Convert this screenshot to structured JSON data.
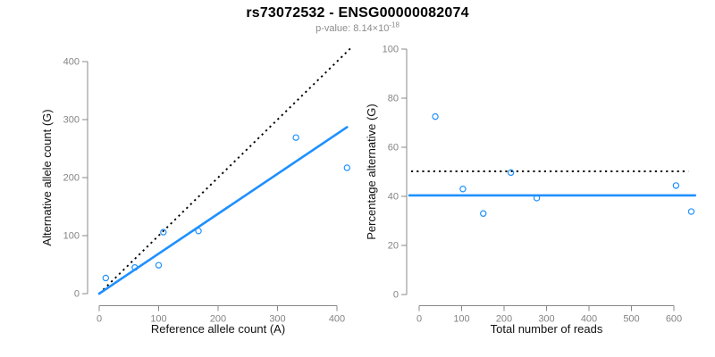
{
  "header": {
    "title": "rs73072532 - ENSG00000082074",
    "subtitle_prefix": "p-value: 8.14×10",
    "subtitle_exponent": "-18"
  },
  "colors": {
    "point_blue": "#1e90ff",
    "line_blue": "#1e90ff",
    "dashed_black": "#000000",
    "axis_gray": "#888888",
    "tick_label_gray": "#848484",
    "axis_title_color": "#111111"
  },
  "chart_data": [
    {
      "id": "allele-counts",
      "type": "scatter",
      "xlabel": "Reference allele count (A)",
      "ylabel": "Alternative allele count (G)",
      "x_ticks": [
        0,
        100,
        200,
        300,
        400
      ],
      "y_ticks": [
        0,
        100,
        200,
        300,
        400
      ],
      "xlim": [
        0,
        400
      ],
      "ylim": [
        0,
        400
      ],
      "grid": false,
      "legend": "none",
      "points": [
        [
          11,
          27
        ],
        [
          60,
          45
        ],
        [
          100,
          49
        ],
        [
          108,
          106
        ],
        [
          167,
          108
        ],
        [
          331,
          269
        ],
        [
          417,
          217
        ]
      ],
      "lines": [
        {
          "name": "identity-line",
          "style": "dashed",
          "x1": 0,
          "y1": 0,
          "x2": 423,
          "y2": 423
        },
        {
          "name": "regression-line",
          "style": "solid",
          "x1": 0,
          "y1": 0,
          "x2": 417,
          "y2": 287
        }
      ]
    },
    {
      "id": "percentage-reads",
      "type": "scatter",
      "xlabel": "Total number of reads",
      "ylabel": "Percentage alternative (G)",
      "x_ticks": [
        0,
        100,
        200,
        300,
        400,
        500,
        600
      ],
      "y_ticks": [
        0,
        20,
        40,
        60,
        80,
        100
      ],
      "xlim": [
        0,
        600
      ],
      "ylim": [
        0,
        100
      ],
      "grid": false,
      "legend": "none",
      "points": [
        [
          38,
          72.5
        ],
        [
          103,
          43
        ],
        [
          151,
          33
        ],
        [
          216,
          49.7
        ],
        [
          277,
          39.3
        ],
        [
          605,
          44.4
        ],
        [
          641,
          33.8
        ]
      ],
      "lines": [
        {
          "name": "expected-50pct-line",
          "style": "dashed",
          "x1": -19,
          "y1": 50.2,
          "x2": 634,
          "y2": 50.2
        },
        {
          "name": "mean-percentage-line",
          "style": "solid",
          "x1": -23,
          "y1": 40.4,
          "x2": 650,
          "y2": 40.4
        }
      ]
    }
  ]
}
